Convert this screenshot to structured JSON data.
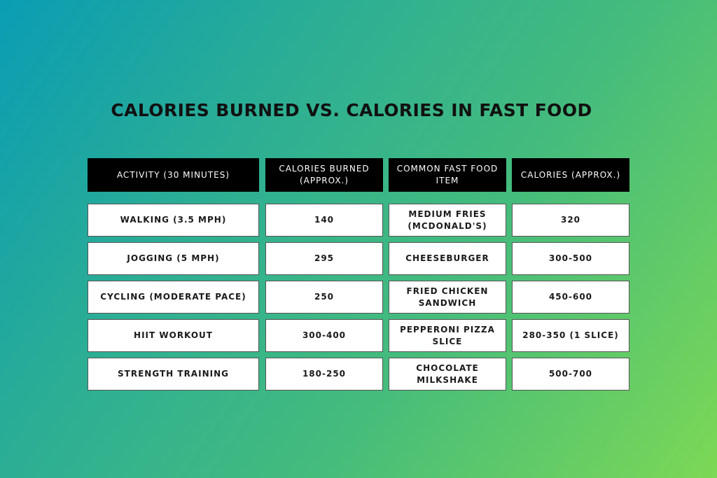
{
  "title": "CALORIES BURNED VS. CALORIES IN FAST FOOD",
  "table": {
    "headers": [
      "ACTIVITY (30 MINUTES)",
      "CALORIES BURNED (APPROX.)",
      "COMMON FAST FOOD ITEM",
      "CALORIES (APPROX.)"
    ],
    "rows": [
      [
        "WALKING (3.5 MPH)",
        "140",
        "MEDIUM FRIES (MCDONALD'S)",
        "320"
      ],
      [
        "JOGGING (5 MPH)",
        "295",
        "CHEESEBURGER",
        "300-500"
      ],
      [
        "CYCLING (MODERATE PACE)",
        "250",
        "FRIED CHICKEN SANDWICH",
        "450-600"
      ],
      [
        "HIIT WORKOUT",
        "300-400",
        "PEPPERONI PIZZA SLICE",
        "280-350 (1 SLICE)"
      ],
      [
        "STRENGTH TRAINING",
        "180-250",
        "CHOCOLATE MILKSHAKE",
        "500-700"
      ]
    ]
  }
}
